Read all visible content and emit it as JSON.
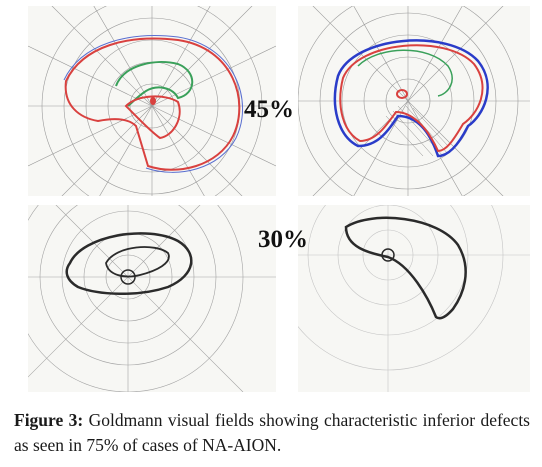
{
  "figure": {
    "label_top": "45%",
    "label_bottom": "30%",
    "caption_label": "Figure 3:",
    "caption_text": "Goldmann visual fields showing characteristic inferior defects as seen in 75% of cases of NA-AION."
  },
  "colors": {
    "isopter_outer": "#d9413f",
    "isopter_inner": "#3aa05a",
    "isopter_blue": "#2a3cc9",
    "isopter_black": "#2b2b2b"
  }
}
